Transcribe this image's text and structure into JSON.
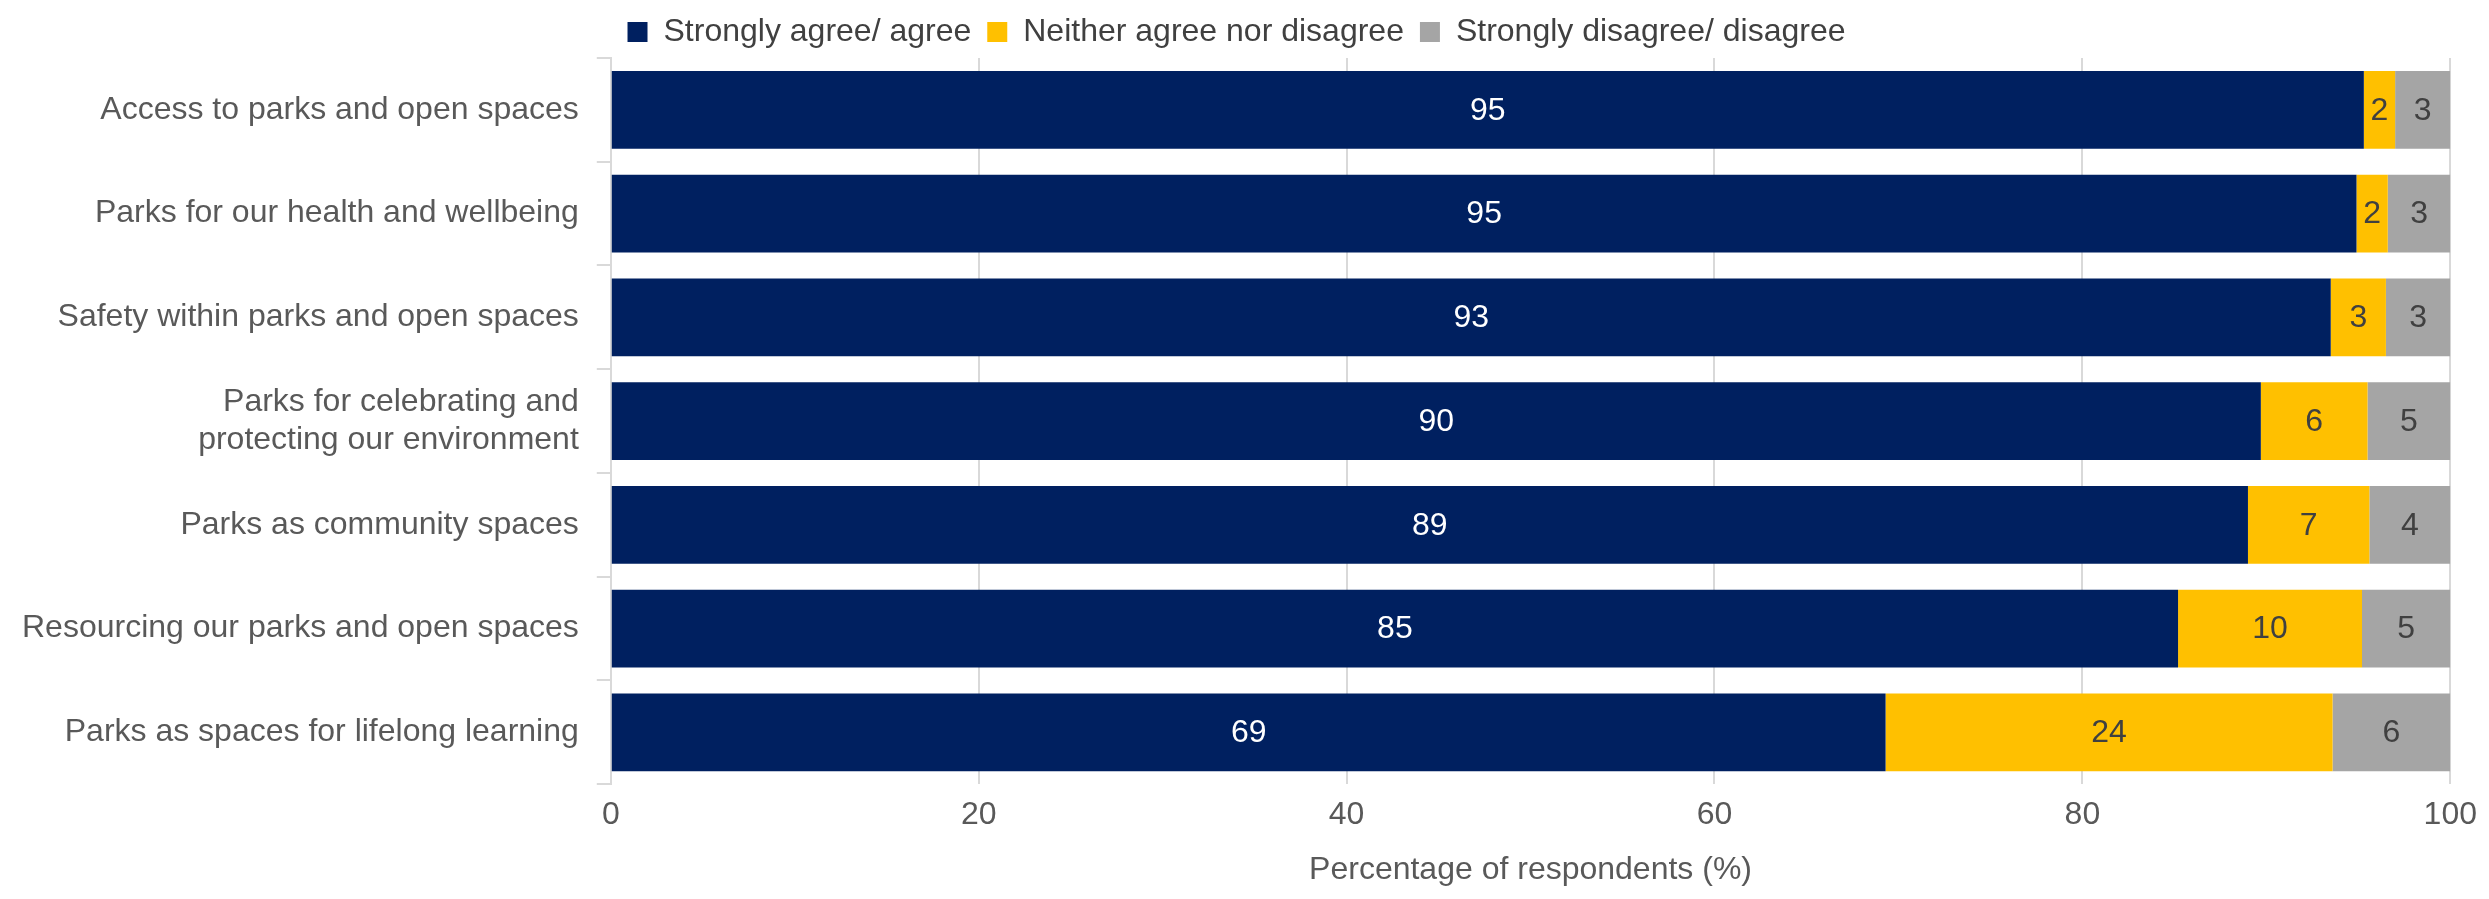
{
  "chart_data": {
    "type": "bar",
    "orientation": "horizontal",
    "stacked": true,
    "categories": [
      "Access to parks and open spaces",
      "Parks for our health and wellbeing",
      "Safety within parks and open spaces",
      "Parks for celebrating and protecting our environment",
      "Parks as community spaces",
      "Resourcing our parks and open spaces",
      "Parks as spaces for lifelong learning"
    ],
    "series": [
      {
        "name": "Strongly agree/ agree",
        "color": "#002060",
        "values": [
          95.3,
          94.9,
          93.5,
          89.7,
          89.0,
          85.2,
          69.3
        ],
        "value_labels": [
          "95",
          "95",
          "93",
          "90",
          "89",
          "85",
          "69"
        ]
      },
      {
        "name": "Neither agree nor disagree",
        "color": "#ffc000",
        "values": [
          1.7,
          1.7,
          3.0,
          5.8,
          6.6,
          10.0,
          24.3
        ],
        "value_labels": [
          "2",
          "2",
          "3",
          "6",
          "7",
          "10",
          "24"
        ]
      },
      {
        "name": "Strongly disagree/ disagree",
        "color": "#a5a5a5",
        "values": [
          3.0,
          3.4,
          3.5,
          4.5,
          4.4,
          4.8,
          6.4
        ],
        "value_labels": [
          "3",
          "3",
          "3",
          "5",
          "4",
          "5",
          "6"
        ]
      }
    ],
    "xlabel": "Percentage of respondents (%)",
    "xlim": [
      0,
      100
    ],
    "xticks": [
      0,
      20,
      40,
      60,
      80,
      100
    ],
    "grid": "x",
    "legend": "top"
  }
}
